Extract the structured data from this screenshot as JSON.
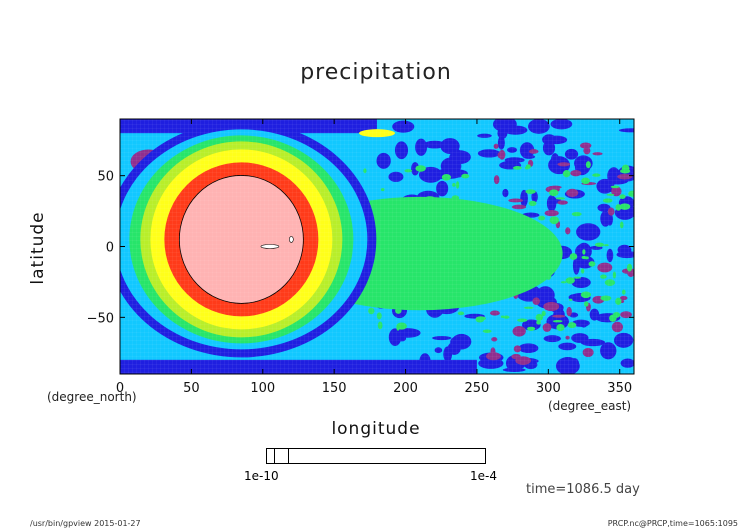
{
  "chart_data": {
    "type": "heatmap",
    "title": "precipitation",
    "xlabel": "longitude",
    "ylabel": "latitude",
    "x_units": "(degree_east)",
    "y_units": "(degree_north)",
    "xlim": [
      0,
      360
    ],
    "ylim": [
      -90,
      90
    ],
    "x_ticks": [
      "0",
      "50",
      "100",
      "150",
      "200",
      "250",
      "300",
      "350"
    ],
    "y_ticks": [
      "50",
      "0",
      "−50"
    ],
    "colorbar": {
      "left_label": "1e-10",
      "right_label": "1e-4",
      "colors": [
        "#1a1a1a",
        "#ff3b1a",
        "#ffb6b6"
      ]
    },
    "contour_colors": {
      "lowest": "#8f2f8f",
      "level1": "#1f1fe0",
      "level2": "#12c8ff",
      "level3": "#27e56a",
      "level4": "#b8ee2a",
      "level5": "#ffff1a",
      "level6": "#ff3b1a",
      "highest": "#ffb3b3"
    },
    "features": [
      {
        "name": "central maximum",
        "lon": 85,
        "lat": 5,
        "level": "highest"
      }
    ],
    "time_label": "time=1086.5  day"
  },
  "footer": {
    "left": "/usr/bin/gpview  2015-01-27",
    "right": "PRCP.nc@PRCP,time=1065:1095"
  }
}
